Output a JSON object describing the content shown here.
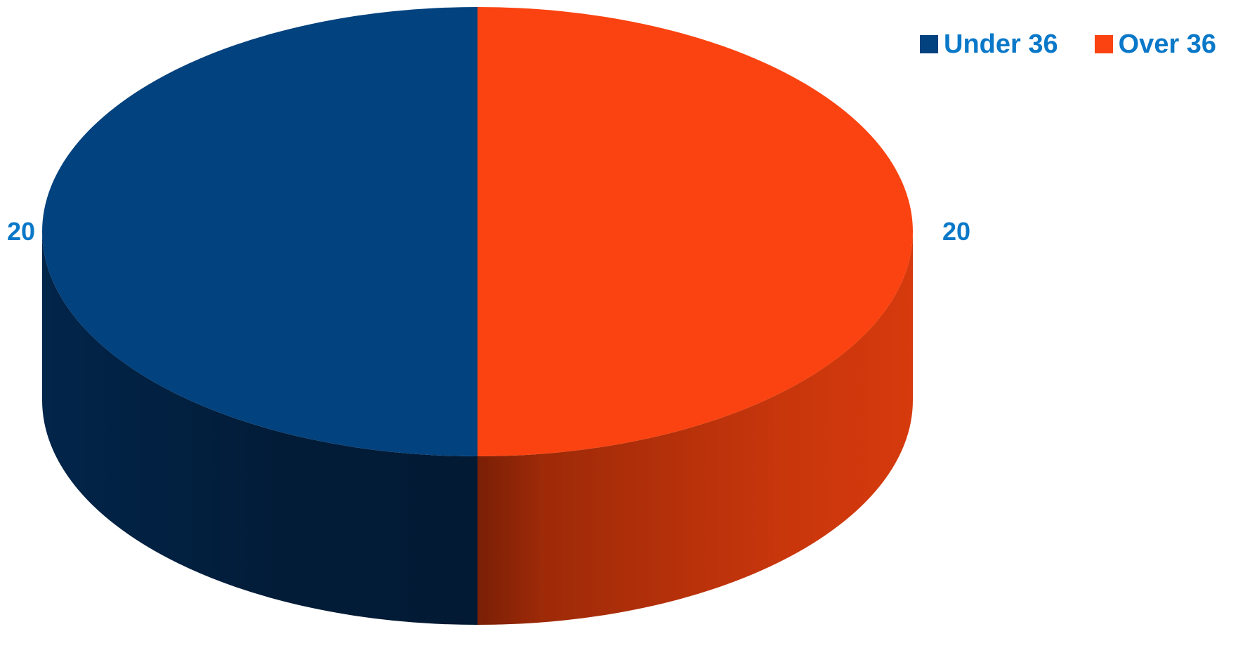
{
  "chart_data": {
    "type": "pie",
    "style": "3d",
    "categories": [
      "Under 36",
      "Over 36"
    ],
    "values": [
      20,
      20
    ],
    "data_labels": [
      "20",
      "20"
    ],
    "colors": [
      "#02427e",
      "#fa4310"
    ],
    "side_colors": [
      "#021e3c",
      "#b8300a"
    ],
    "label_color": "#0a78c8",
    "legend_position": "top-right"
  }
}
